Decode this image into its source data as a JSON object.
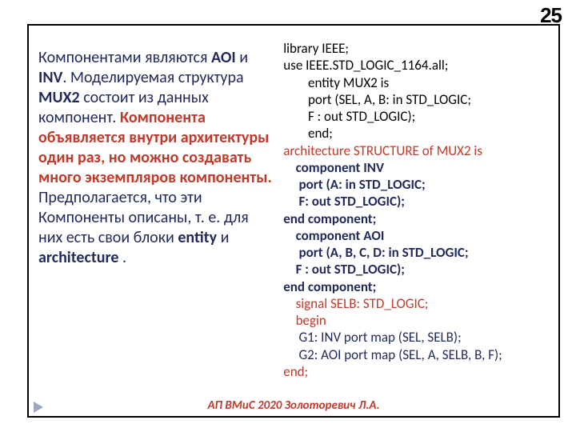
{
  "page_number": "25",
  "footer": "АП  ВМиС     2020    Золоторевич Л.А.",
  "colors": {
    "navy": "#1f2a5a",
    "red": "#c0392b",
    "bold_navy": "#1f2a5a",
    "black": "#000000"
  },
  "left": {
    "runs": [
      {
        "cls": "txt-navy",
        "text": "Компонентами являются "
      },
      {
        "cls": "txt-bold",
        "text": "AOI"
      },
      {
        "cls": "txt-navy",
        "text": " и "
      },
      {
        "cls": "txt-bold",
        "text": "INV"
      },
      {
        "cls": "txt-navy",
        "text": ". Моделируемая структура "
      },
      {
        "cls": "txt-bold",
        "text": "MUX2"
      },
      {
        "cls": "txt-navy",
        "text": " состоит из данных компонент. "
      },
      {
        "cls": "txt-red",
        "text": "Компонента объявляется внутри архитектуры один раз, но можно создавать много экземпляров компоненты."
      },
      {
        "cls": "txt-navy",
        "text": " Предполагается, что эти Компоненты описаны, т. е. для них есть свои блоки "
      },
      {
        "cls": "txt-bold",
        "text": "entity"
      },
      {
        "cls": "txt-navy",
        "text": " и "
      },
      {
        "cls": "txt-bold",
        "text": "architecture"
      },
      {
        "cls": "txt-navy",
        "text": " ."
      }
    ]
  },
  "code": {
    "fontsize_pt": 17,
    "lines": [
      {
        "color": "#000000",
        "bold": false,
        "indent": 0,
        "text": "library IEEE;"
      },
      {
        "color": "#000000",
        "bold": false,
        "indent": 0,
        "text": "use IEEE.STD_LOGIC_1164.all;"
      },
      {
        "color": "#000000",
        "bold": false,
        "indent": 2,
        "text": "entity MUX2 is"
      },
      {
        "color": "#000000",
        "bold": false,
        "indent": 2,
        "text": "port (SEL, A, B: in STD_LOGIC;"
      },
      {
        "color": "#000000",
        "bold": false,
        "indent": 2,
        "text": "F : out STD_LOGIC);"
      },
      {
        "color": "#000000",
        "bold": false,
        "indent": 2,
        "text": "end;"
      },
      {
        "color": "#c0392b",
        "bold": false,
        "indent": 0,
        "text": "architecture STRUCTURE of MUX2 is"
      },
      {
        "color": "#1f2a5a",
        "bold": true,
        "indent": 1,
        "text": "component INV"
      },
      {
        "color": "#1f2a5a",
        "bold": true,
        "indent": 1,
        "text": " port (A: in STD_LOGIC;"
      },
      {
        "color": "#1f2a5a",
        "bold": true,
        "indent": 1,
        "text": " F: out STD_LOGIC);"
      },
      {
        "color": "#1f2a5a",
        "bold": true,
        "indent": 0,
        "text": "end component;"
      },
      {
        "color": "#1f2a5a",
        "bold": true,
        "indent": 1,
        "text": "component AOI"
      },
      {
        "color": "#1f2a5a",
        "bold": true,
        "indent": 1,
        "text": " port (A, B, C, D: in STD_LOGIC;"
      },
      {
        "color": "#1f2a5a",
        "bold": true,
        "indent": 1,
        "text": "F : out STD_LOGIC);"
      },
      {
        "color": "#1f2a5a",
        "bold": true,
        "indent": 0,
        "text": "end component;"
      },
      {
        "color": "#c0392b",
        "bold": false,
        "indent": 1,
        "text": "signal SELB: STD_LOGIC;"
      },
      {
        "color": "#c0392b",
        "bold": false,
        "indent": 1,
        "text": "begin"
      },
      {
        "color": "#1f2a5a",
        "bold": false,
        "indent": 1,
        "text": " G1: INV port map (SEL, SELB);"
      },
      {
        "color": "#1f2a5a",
        "bold": false,
        "indent": 1,
        "text": " G2: AOI port map (SEL, A, SELB, B, F);"
      },
      {
        "color": "#c0392b",
        "bold": false,
        "indent": 0,
        "text": "end;"
      }
    ]
  }
}
